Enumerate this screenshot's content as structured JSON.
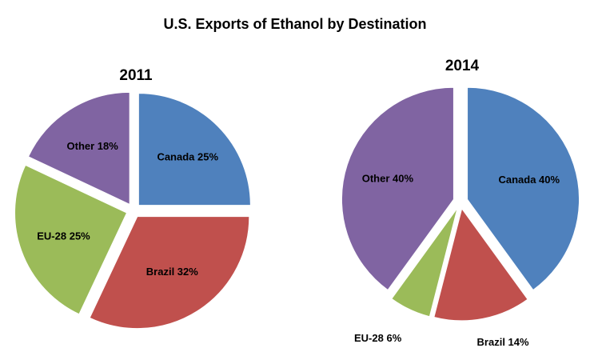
{
  "title": "U.S. Exports of Ethanol by Destination",
  "chart_data": [
    {
      "type": "pie",
      "title": "2011",
      "categories": [
        "Canada",
        "Brazil",
        "EU-28",
        "Other"
      ],
      "values": [
        25,
        32,
        25,
        18
      ],
      "labels": [
        "Canada 25%",
        "Brazil 32%",
        "EU-28 25%",
        "Other 18%"
      ],
      "colors": [
        "#4F81BD",
        "#C0504D",
        "#9BBB59",
        "#8064A2"
      ],
      "exploded": true
    },
    {
      "type": "pie",
      "title": "2014",
      "categories": [
        "Canada",
        "Brazil",
        "EU-28",
        "Other"
      ],
      "values": [
        40,
        14,
        6,
        40
      ],
      "labels": [
        "Canada 40%",
        "Brazil 14%",
        "EU-28 6%",
        "Other 40%"
      ],
      "colors": [
        "#4F81BD",
        "#C0504D",
        "#9BBB59",
        "#8064A2"
      ],
      "exploded": true
    }
  ]
}
